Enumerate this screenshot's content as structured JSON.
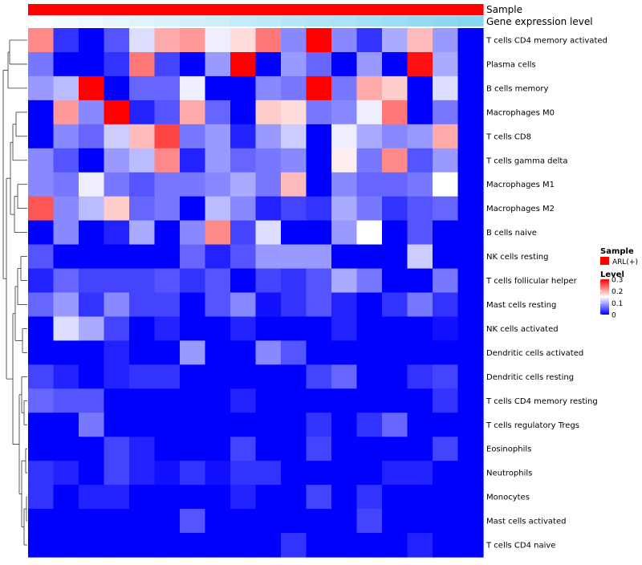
{
  "chart_data": {
    "type": "heatmap",
    "annotation_rows": [
      {
        "label": "Sample"
      },
      {
        "label": "Gene expression level"
      }
    ],
    "sample_annotation": {
      "values": [
        "ARL(+)",
        "ARL(+)",
        "ARL(+)",
        "ARL(+)",
        "ARL(+)",
        "ARL(+)",
        "ARL(+)",
        "ARL(+)",
        "ARL(+)",
        "ARL(+)",
        "ARL(+)",
        "ARL(+)",
        "ARL(+)",
        "ARL(+)",
        "ARL(+)",
        "ARL(+)",
        "ARL(+)",
        "ARL(+)"
      ],
      "color": "#FF0000"
    },
    "gene_expression_level": [
      0.02,
      0.06,
      0.1,
      0.14,
      0.18,
      0.22,
      0.26,
      0.3,
      0.34,
      0.38,
      0.42,
      0.46,
      0.5,
      0.54,
      0.58,
      0.62,
      0.66,
      0.7
    ],
    "rows": [
      "T cells CD4 memory activated",
      "Plasma cells",
      "B cells memory",
      "Macrophages M0",
      "T cells CD8",
      "T cells gamma delta",
      "Macrophages M1",
      "Macrophages M2",
      "B cells naive",
      "NK cells resting",
      "T cells follicular helper",
      "Mast cells resting",
      "NK cells activated",
      "Dendritic cells activated",
      "Dendritic cells resting",
      "T cells CD4 memory resting",
      "T cells regulatory  Tregs",
      "Eosinophils",
      "Neutrophils",
      "Monocytes",
      "Mast cells activated",
      "T cells CD4 naive"
    ],
    "values": [
      [
        0.22,
        0.03,
        0.0,
        0.05,
        0.13,
        0.2,
        0.21,
        0.14,
        0.17,
        0.23,
        0.08,
        0.3,
        0.08,
        0.03,
        0.1,
        0.19,
        0.09,
        0.0
      ],
      [
        0.07,
        0.0,
        0.0,
        0.03,
        0.23,
        0.04,
        0.0,
        0.09,
        0.3,
        0.0,
        0.09,
        0.06,
        0.0,
        0.09,
        0.0,
        0.29,
        0.1,
        0.0
      ],
      [
        0.09,
        0.11,
        0.3,
        0.0,
        0.06,
        0.06,
        0.14,
        0.0,
        0.0,
        0.08,
        0.07,
        0.3,
        0.07,
        0.2,
        0.18,
        0.0,
        0.13,
        0.0
      ],
      [
        0.0,
        0.21,
        0.08,
        0.3,
        0.02,
        0.05,
        0.2,
        0.06,
        0.0,
        0.18,
        0.17,
        0.07,
        0.08,
        0.14,
        0.23,
        0.0,
        0.07,
        0.0
      ],
      [
        0.0,
        0.08,
        0.06,
        0.12,
        0.19,
        0.26,
        0.07,
        0.09,
        0.02,
        0.09,
        0.12,
        0.0,
        0.14,
        0.1,
        0.08,
        0.09,
        0.2,
        0.0
      ],
      [
        0.08,
        0.05,
        0.0,
        0.09,
        0.11,
        0.22,
        0.02,
        0.09,
        0.06,
        0.07,
        0.08,
        0.0,
        0.16,
        0.07,
        0.22,
        0.05,
        0.09,
        0.0
      ],
      [
        0.08,
        0.07,
        0.14,
        0.07,
        0.05,
        0.07,
        0.07,
        0.08,
        0.1,
        0.07,
        0.19,
        0.0,
        0.08,
        0.06,
        0.06,
        0.07,
        0.15,
        0.0
      ],
      [
        0.25,
        0.08,
        0.11,
        0.18,
        0.06,
        0.07,
        0.0,
        0.11,
        0.08,
        0.02,
        0.04,
        0.03,
        0.1,
        0.07,
        0.03,
        0.05,
        0.06,
        0.0
      ],
      [
        0.0,
        0.08,
        0.0,
        0.02,
        0.1,
        0.0,
        0.08,
        0.22,
        0.04,
        0.13,
        0.0,
        0.0,
        0.09,
        0.15,
        0.0,
        0.05,
        0.0,
        0.0
      ],
      [
        0.05,
        0.0,
        0.0,
        0.0,
        0.0,
        0.0,
        0.06,
        0.02,
        0.05,
        0.09,
        0.09,
        0.09,
        0.0,
        0.0,
        0.0,
        0.12,
        0.0,
        0.0
      ],
      [
        0.02,
        0.06,
        0.04,
        0.04,
        0.04,
        0.05,
        0.03,
        0.05,
        0.0,
        0.04,
        0.03,
        0.05,
        0.1,
        0.07,
        0.0,
        0.0,
        0.07,
        0.0
      ],
      [
        0.06,
        0.09,
        0.03,
        0.08,
        0.04,
        0.04,
        0.0,
        0.05,
        0.08,
        0.01,
        0.03,
        0.05,
        0.02,
        0.0,
        0.03,
        0.07,
        0.03,
        0.0
      ],
      [
        0.0,
        0.13,
        0.1,
        0.04,
        0.0,
        0.02,
        0.0,
        0.0,
        0.02,
        0.0,
        0.0,
        0.0,
        0.02,
        0.0,
        0.0,
        0.0,
        0.01,
        0.0
      ],
      [
        0.0,
        0.0,
        0.0,
        0.02,
        0.0,
        0.0,
        0.09,
        0.0,
        0.0,
        0.08,
        0.05,
        0.0,
        0.0,
        0.0,
        0.0,
        0.0,
        0.0,
        0.0
      ],
      [
        0.04,
        0.02,
        0.0,
        0.02,
        0.03,
        0.03,
        0.0,
        0.0,
        0.0,
        0.0,
        0.0,
        0.04,
        0.06,
        0.0,
        0.0,
        0.03,
        0.04,
        0.0
      ],
      [
        0.06,
        0.05,
        0.05,
        0.0,
        0.0,
        0.0,
        0.0,
        0.0,
        0.02,
        0.0,
        0.0,
        0.0,
        0.0,
        0.0,
        0.0,
        0.0,
        0.03,
        0.0
      ],
      [
        0.0,
        0.0,
        0.07,
        0.0,
        0.0,
        0.0,
        0.0,
        0.0,
        0.0,
        0.0,
        0.0,
        0.03,
        0.0,
        0.03,
        0.06,
        0.0,
        0.0,
        0.0
      ],
      [
        0.0,
        0.0,
        0.0,
        0.04,
        0.02,
        0.0,
        0.0,
        0.0,
        0.04,
        0.0,
        0.0,
        0.04,
        0.0,
        0.0,
        0.0,
        0.0,
        0.04,
        0.0
      ],
      [
        0.03,
        0.02,
        0.0,
        0.04,
        0.02,
        0.01,
        0.03,
        0.01,
        0.03,
        0.03,
        0.0,
        0.0,
        0.0,
        0.0,
        0.02,
        0.02,
        0.0,
        0.0
      ],
      [
        0.03,
        0.0,
        0.02,
        0.02,
        0.0,
        0.0,
        0.0,
        0.0,
        0.02,
        0.0,
        0.0,
        0.04,
        0.0,
        0.03,
        0.0,
        0.0,
        0.0,
        0.0
      ],
      [
        0.0,
        0.0,
        0.0,
        0.0,
        0.0,
        0.0,
        0.05,
        0.0,
        0.0,
        0.0,
        0.0,
        0.0,
        0.0,
        0.04,
        0.0,
        0.0,
        0.0,
        0.0
      ],
      [
        0.0,
        0.0,
        0.0,
        0.0,
        0.0,
        0.0,
        0.0,
        0.0,
        0.0,
        0.0,
        0.03,
        0.0,
        0.0,
        0.0,
        0.0,
        0.02,
        0.0,
        0.0
      ]
    ],
    "color_scale": {
      "min": 0,
      "mid": 0.15,
      "max": 0.3,
      "low": "#0000FF",
      "midColor": "#FFFFFF",
      "high": "#FF0000"
    },
    "legend": {
      "sample_title": "Sample",
      "sample_label": "ARL(+)",
      "level_title": "Level",
      "level_ticks": [
        {
          "value": 0.3,
          "label": "0.3"
        },
        {
          "value": 0.2,
          "label": "0.2"
        },
        {
          "value": 0.1,
          "label": "0.1"
        },
        {
          "value": 0.0,
          "label": "0"
        }
      ]
    }
  }
}
